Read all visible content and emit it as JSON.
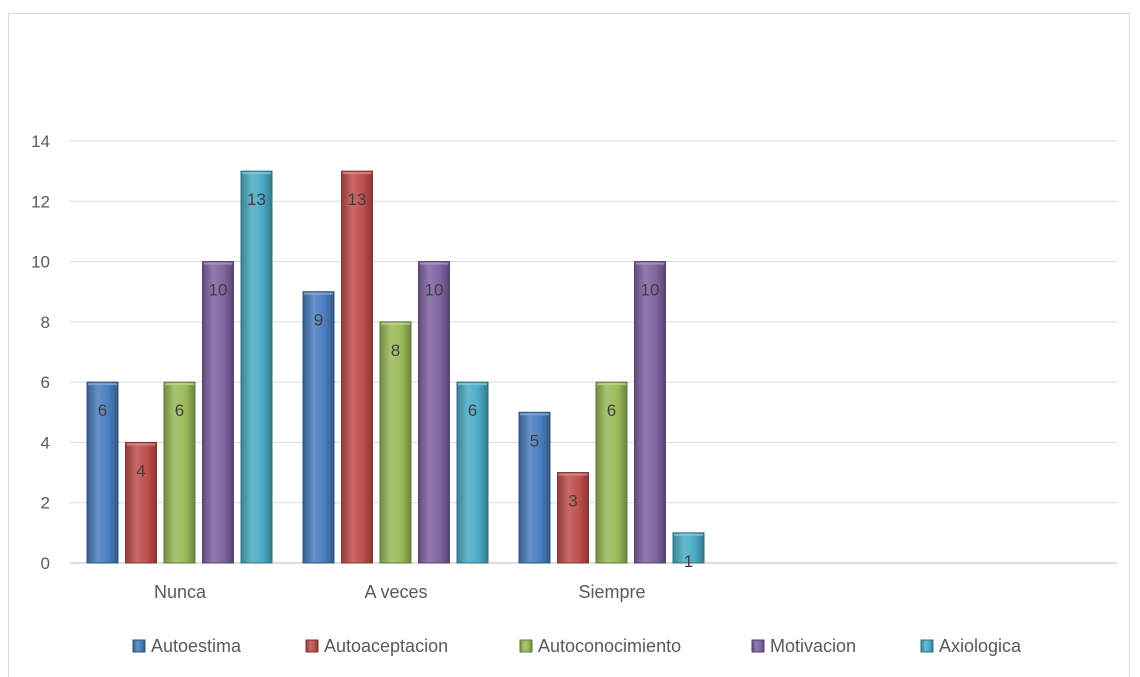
{
  "chart_data": {
    "type": "bar",
    "title": "",
    "xlabel": "",
    "ylabel": "",
    "categories": [
      "Nunca",
      "A veces",
      "Siempre"
    ],
    "ylim": [
      0,
      14
    ],
    "yticks": [
      "0",
      "2",
      "4",
      "6",
      "8",
      "10",
      "12",
      "14"
    ],
    "grid": true,
    "legend_position": "bottom",
    "series": [
      {
        "name": "Autoestima",
        "values": [
          6,
          9,
          5
        ],
        "color": "#4a7ebf"
      },
      {
        "name": "Autoaceptacion",
        "values": [
          4,
          13,
          3
        ],
        "color": "#c0504d"
      },
      {
        "name": "Autoconocimiento",
        "values": [
          6,
          8,
          6
        ],
        "color": "#9bbb59"
      },
      {
        "name": "Motivacion",
        "values": [
          10,
          10,
          10
        ],
        "color": "#8064a2"
      },
      {
        "name": "Axiologica",
        "values": [
          13,
          6,
          1
        ],
        "color": "#4bacc6"
      }
    ],
    "data_labels": [
      [
        "6",
        "9",
        "5"
      ],
      [
        "4",
        "13",
        "3"
      ],
      [
        "6",
        "8",
        "6"
      ],
      [
        "10",
        "10",
        "10"
      ],
      [
        "13",
        "6",
        "1"
      ]
    ]
  }
}
